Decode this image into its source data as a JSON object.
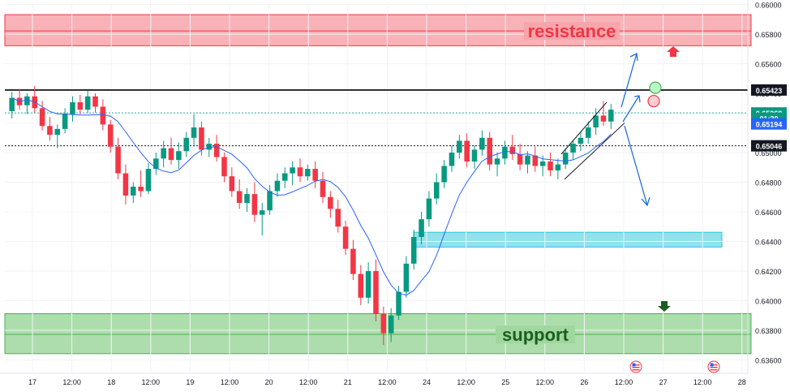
{
  "chart_data": {
    "type": "candlestick",
    "instrument_hint": "FX pair price chart",
    "y_axis": {
      "range": [
        0.6352,
        0.6602
      ],
      "ticks": [
        "0.66000",
        "0.65800",
        "0.65600",
        "0.65400",
        "0.65200",
        "0.65000",
        "0.64800",
        "0.64600",
        "0.64400",
        "0.64200",
        "0.64000",
        "0.63800",
        "0.63600"
      ],
      "tick_values": [
        0.66,
        0.658,
        0.656,
        0.654,
        0.652,
        0.65,
        0.648,
        0.646,
        0.644,
        0.642,
        0.64,
        0.638,
        0.636
      ]
    },
    "x_axis": {
      "ticks": [
        "17",
        "12:00",
        "18",
        "12:00",
        "19",
        "12:00",
        "20",
        "12:00",
        "21",
        "12:00",
        "24",
        "12:00",
        "25",
        "12:00",
        "26",
        "12:00",
        "27",
        "12:00",
        "28"
      ],
      "tick_index": [
        0,
        1,
        2,
        3,
        4,
        5,
        6,
        7,
        8,
        9,
        10,
        11,
        12,
        13,
        14,
        15,
        16,
        17,
        18
      ]
    },
    "price_labels": [
      {
        "text": "0.65423",
        "value": 0.65423,
        "style": "dark",
        "color": "#131722"
      },
      {
        "text": "0.65268",
        "value": 0.65268,
        "style": "green",
        "color": "#089981"
      },
      {
        "text": "01:30",
        "value": 0.65232,
        "style": "green",
        "color": "#089981"
      },
      {
        "text": "0.65194",
        "value": 0.65194,
        "style": "blue",
        "color": "#2962ff"
      },
      {
        "text": "0.65046",
        "value": 0.65046,
        "style": "dark",
        "color": "#131722"
      }
    ],
    "zones": [
      {
        "label": "resistance",
        "top": 0.65932,
        "bottom": 0.65722,
        "mid": 0.65822,
        "fill": "#f7a5ab",
        "stroke": "#f23645",
        "text_color": "#f23645"
      },
      {
        "label": "support",
        "top": 0.63912,
        "bottom": 0.63642,
        "mid": 0.63772,
        "fill": "#9fd79f",
        "stroke": "#4caf50",
        "text_color": "#1b5e20"
      },
      {
        "label": "",
        "top": 0.64462,
        "bottom": 0.64362,
        "fill": "#7fdde9",
        "stroke": "#26c6da"
      }
    ],
    "lines": [
      {
        "value": 0.65423,
        "style": "solid",
        "color": "#000000"
      },
      {
        "value": 0.65046,
        "style": "dotted",
        "color": "#131722"
      },
      {
        "value": 0.65268,
        "style": "dotted",
        "color": "#26a69a"
      }
    ],
    "candles": [
      [
        0.6528,
        0.6541,
        0.6523,
        0.6537
      ],
      [
        0.6537,
        0.6543,
        0.6529,
        0.6532
      ],
      [
        0.6532,
        0.654,
        0.6526,
        0.6538
      ],
      [
        0.6538,
        0.6545,
        0.6527,
        0.653
      ],
      [
        0.653,
        0.6535,
        0.6515,
        0.6518
      ],
      [
        0.6518,
        0.6524,
        0.6508,
        0.6512
      ],
      [
        0.6512,
        0.6519,
        0.6503,
        0.6516
      ],
      [
        0.6516,
        0.653,
        0.6513,
        0.6526
      ],
      [
        0.6526,
        0.6538,
        0.6521,
        0.6534
      ],
      [
        0.6534,
        0.6539,
        0.6526,
        0.6529
      ],
      [
        0.6529,
        0.6542,
        0.6527,
        0.6538
      ],
      [
        0.6538,
        0.654,
        0.6527,
        0.6531
      ],
      [
        0.6531,
        0.6536,
        0.6515,
        0.6519
      ],
      [
        0.6519,
        0.6522,
        0.65,
        0.6504
      ],
      [
        0.6504,
        0.651,
        0.6482,
        0.6486
      ],
      [
        0.6486,
        0.6492,
        0.6465,
        0.6471
      ],
      [
        0.6471,
        0.648,
        0.6466,
        0.6477
      ],
      [
        0.6477,
        0.6488,
        0.647,
        0.6474
      ],
      [
        0.6474,
        0.6493,
        0.6472,
        0.6489
      ],
      [
        0.6489,
        0.65,
        0.6485,
        0.6496
      ],
      [
        0.6496,
        0.6508,
        0.649,
        0.6503
      ],
      [
        0.6503,
        0.651,
        0.6492,
        0.6495
      ],
      [
        0.6495,
        0.6507,
        0.6489,
        0.6501
      ],
      [
        0.6501,
        0.6514,
        0.6497,
        0.651
      ],
      [
        0.651,
        0.6526,
        0.6504,
        0.6517
      ],
      [
        0.6517,
        0.6521,
        0.6498,
        0.6502
      ],
      [
        0.6502,
        0.651,
        0.6497,
        0.6506
      ],
      [
        0.6506,
        0.6512,
        0.6494,
        0.6497
      ],
      [
        0.6497,
        0.65,
        0.648,
        0.6484
      ],
      [
        0.6484,
        0.649,
        0.647,
        0.6474
      ],
      [
        0.6474,
        0.6482,
        0.6462,
        0.6466
      ],
      [
        0.6466,
        0.6476,
        0.646,
        0.6472
      ],
      [
        0.6472,
        0.648,
        0.6453,
        0.6458
      ],
      [
        0.6458,
        0.6466,
        0.6444,
        0.6461
      ],
      [
        0.6461,
        0.6478,
        0.6458,
        0.6474
      ],
      [
        0.6474,
        0.6486,
        0.647,
        0.6481
      ],
      [
        0.6481,
        0.649,
        0.6476,
        0.6486
      ],
      [
        0.6486,
        0.6494,
        0.6478,
        0.649
      ],
      [
        0.649,
        0.6496,
        0.648,
        0.6484
      ],
      [
        0.6484,
        0.6492,
        0.6481,
        0.6489
      ],
      [
        0.6489,
        0.6494,
        0.6476,
        0.6481
      ],
      [
        0.6481,
        0.6487,
        0.6466,
        0.647
      ],
      [
        0.647,
        0.6474,
        0.6456,
        0.6462
      ],
      [
        0.6462,
        0.6468,
        0.6446,
        0.645
      ],
      [
        0.645,
        0.6454,
        0.6431,
        0.6435
      ],
      [
        0.6435,
        0.6441,
        0.6414,
        0.6418
      ],
      [
        0.6418,
        0.6424,
        0.6397,
        0.6402
      ],
      [
        0.6402,
        0.6426,
        0.6398,
        0.642
      ],
      [
        0.642,
        0.6428,
        0.6386,
        0.6391
      ],
      [
        0.6391,
        0.6396,
        0.637,
        0.6378
      ],
      [
        0.6378,
        0.6395,
        0.6372,
        0.639
      ],
      [
        0.639,
        0.641,
        0.6387,
        0.6406
      ],
      [
        0.6406,
        0.643,
        0.6402,
        0.6425
      ],
      [
        0.6425,
        0.6448,
        0.6421,
        0.6443
      ],
      [
        0.6443,
        0.646,
        0.6438,
        0.6455
      ],
      [
        0.6455,
        0.6474,
        0.645,
        0.6469
      ],
      [
        0.6469,
        0.6486,
        0.6465,
        0.648
      ],
      [
        0.648,
        0.6495,
        0.6476,
        0.6491
      ],
      [
        0.6491,
        0.6505,
        0.6487,
        0.65
      ],
      [
        0.65,
        0.6512,
        0.6496,
        0.6508
      ],
      [
        0.6508,
        0.6513,
        0.649,
        0.6494
      ],
      [
        0.6494,
        0.6505,
        0.6489,
        0.6502
      ],
      [
        0.6502,
        0.6515,
        0.6498,
        0.651
      ],
      [
        0.651,
        0.6514,
        0.6488,
        0.6492
      ],
      [
        0.6492,
        0.65,
        0.6484,
        0.6496
      ],
      [
        0.6496,
        0.6508,
        0.6492,
        0.6504
      ],
      [
        0.6504,
        0.6512,
        0.6495,
        0.6499
      ],
      [
        0.6499,
        0.6506,
        0.6488,
        0.6492
      ],
      [
        0.6492,
        0.6501,
        0.6486,
        0.6498
      ],
      [
        0.6498,
        0.6504,
        0.6487,
        0.6491
      ],
      [
        0.6491,
        0.6498,
        0.6484,
        0.6494
      ],
      [
        0.6494,
        0.65,
        0.6484,
        0.6488
      ],
      [
        0.6488,
        0.6496,
        0.6482,
        0.6492
      ],
      [
        0.6492,
        0.6503,
        0.6489,
        0.65
      ],
      [
        0.65,
        0.6508,
        0.6495,
        0.6506
      ],
      [
        0.6506,
        0.6514,
        0.6501,
        0.651
      ],
      [
        0.651,
        0.6521,
        0.6506,
        0.6517
      ],
      [
        0.6517,
        0.653,
        0.6512,
        0.6525
      ],
      [
        0.6525,
        0.6535,
        0.6518,
        0.6521
      ],
      [
        0.6521,
        0.6533,
        0.6516,
        0.6529
      ]
    ],
    "moving_average": {
      "color": "#2962ff",
      "period": 8
    },
    "annotations": {
      "channel": {
        "color": "#131722"
      },
      "arrows": {
        "color": "#1e6fdb",
        "scenario": [
          "up",
          "down"
        ]
      },
      "markers": [
        {
          "type": "circle",
          "fill": "#b9f6ca",
          "stroke": "#4caf50"
        },
        {
          "type": "circle",
          "fill": "#ffcdd2",
          "stroke": "#f23645"
        }
      ],
      "small_arrows": [
        {
          "direction": "up",
          "color": "#f23645"
        },
        {
          "direction": "down",
          "color": "#1b5e20"
        }
      ],
      "events": [
        {
          "icon": "us-flag-icon"
        },
        {
          "icon": "us-flag-icon"
        }
      ]
    }
  }
}
